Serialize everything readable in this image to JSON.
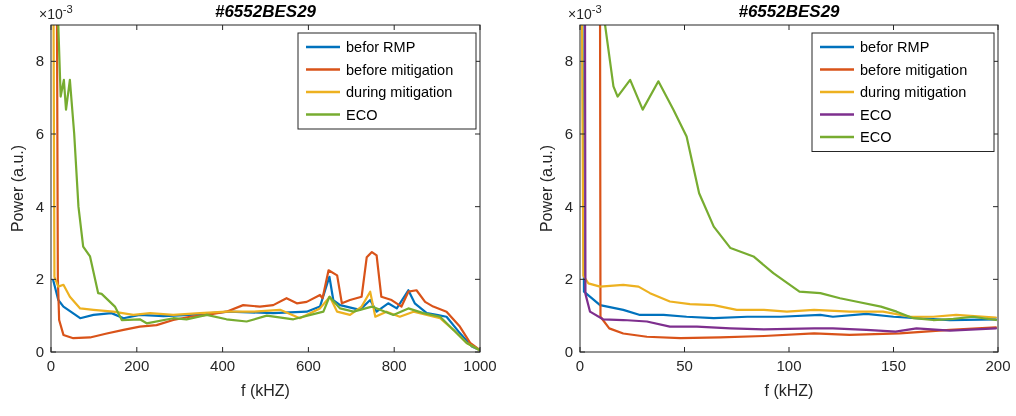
{
  "chart_data": [
    {
      "type": "line",
      "title": "#6552BES29",
      "xlabel": "f (kHZ)",
      "ylabel": "Power (a.u.)",
      "annotations": [
        "×10$^{-3}$"
      ],
      "xlim": [
        0,
        1000
      ],
      "xticks": [
        0,
        200,
        400,
        600,
        800,
        1000
      ],
      "ylim": [
        0,
        9
      ],
      "yticks": [
        0,
        2,
        4,
        6,
        8
      ],
      "legend": "top right",
      "grid": false,
      "marker": "none",
      "line_style": "solid",
      "series": [
        {
          "name": "befor RMP",
          "color": "#0072bd",
          "x": [
            5,
            17,
            29,
            68,
            99,
            141,
            169,
            207,
            262,
            324,
            415,
            518,
            596,
            627,
            639,
            649,
            658,
            674,
            720,
            744,
            759,
            786,
            806,
            833,
            848,
            876,
            899,
            922,
            953,
            981,
            1000
          ],
          "values": [
            1.98,
            1.43,
            1.25,
            0.93,
            1.02,
            1.07,
            0.93,
            1.02,
            0.99,
            1.02,
            1.11,
            1.07,
            1.11,
            1.25,
            1.7,
            2.07,
            1.43,
            1.29,
            1.16,
            1.43,
            1.11,
            1.34,
            1.2,
            1.7,
            1.34,
            1.07,
            1.02,
            0.97,
            0.52,
            0.15,
            0.05
          ]
        },
        {
          "name": "before mitigation",
          "color": "#d95319",
          "x": [
            14,
            16,
            19,
            29,
            52,
            91,
            130,
            169,
            207,
            246,
            285,
            324,
            363,
            409,
            448,
            487,
            518,
            549,
            573,
            596,
            627,
            633,
            647,
            667,
            678,
            697,
            724,
            736,
            748,
            759,
            770,
            794,
            817,
            833,
            852,
            872,
            891,
            922,
            953,
            977,
            1000
          ],
          "values": [
            9,
            2.0,
            0.88,
            0.47,
            0.38,
            0.4,
            0.51,
            0.61,
            0.7,
            0.74,
            0.88,
            0.97,
            1.02,
            1.11,
            1.29,
            1.25,
            1.29,
            1.48,
            1.34,
            1.38,
            1.57,
            1.48,
            2.25,
            2.11,
            1.34,
            1.43,
            1.52,
            2.61,
            2.75,
            2.66,
            1.52,
            1.43,
            1.25,
            1.66,
            1.7,
            1.38,
            1.25,
            1.11,
            0.7,
            0.25,
            0.05
          ]
        },
        {
          "name": "during mitigation",
          "color": "#edb120",
          "x": [
            6,
            8,
            17,
            29,
            44,
            68,
            99,
            145,
            192,
            231,
            285,
            347,
            409,
            472,
            534,
            580,
            627,
            650,
            667,
            697,
            724,
            744,
            756,
            782,
            813,
            845,
            876,
            907,
            938,
            969,
            1000
          ],
          "values": [
            9,
            2.07,
            1.8,
            1.85,
            1.52,
            1.2,
            1.16,
            1.11,
            1.02,
            1.07,
            1.02,
            1.07,
            1.11,
            1.11,
            1.16,
            0.93,
            1.2,
            1.52,
            1.11,
            1.02,
            1.25,
            1.66,
            0.97,
            1.11,
            0.97,
            1.11,
            1.02,
            0.93,
            0.61,
            0.25,
            0.05
          ]
        },
        {
          "name": "ECO",
          "color": "#77ac30",
          "x": [
            17,
            22.5,
            30,
            35,
            44,
            54,
            64,
            75,
            91,
            110,
            118,
            149,
            165,
            207,
            223,
            285,
            316,
            363,
            409,
            456,
            503,
            565,
            635,
            649,
            674,
            705,
            748,
            798,
            833,
            868,
            907,
            930,
            969,
            1000
          ],
          "values": [
            9,
            7.03,
            7.49,
            6.67,
            7.49,
            6.02,
            4.0,
            2.9,
            2.63,
            1.62,
            1.6,
            1.25,
            0.88,
            0.9,
            0.79,
            0.93,
            0.9,
            1.02,
            0.9,
            0.84,
            1.0,
            0.9,
            1.11,
            1.52,
            1.2,
            1.11,
            1.25,
            1.02,
            1.2,
            1.07,
            0.97,
            0.7,
            0.25,
            0.05
          ]
        }
      ]
    },
    {
      "type": "line",
      "title": "#6552BES29",
      "xlabel": "f (kHZ)",
      "ylabel": "Power (a.u.)",
      "annotations": [
        "×10$^{-3}$"
      ],
      "xlim": [
        0,
        200
      ],
      "xticks": [
        0,
        50,
        100,
        150,
        200
      ],
      "ylim": [
        0,
        9
      ],
      "yticks": [
        0,
        2,
        4,
        6,
        8
      ],
      "legend": "top right",
      "grid": false,
      "marker": "none",
      "line_style": "solid",
      "series": [
        {
          "name": "befor RMP",
          "color": "#0072bd",
          "x": [
            1.2,
            1.9,
            9.6,
            20.7,
            28.7,
            40,
            51,
            64,
            80,
            96,
            115,
            121,
            137,
            150,
            161,
            177,
            199
          ],
          "values": [
            9,
            1.66,
            1.29,
            1.16,
            1.02,
            1.02,
            0.97,
            0.93,
            0.97,
            0.97,
            1.02,
            0.97,
            1.05,
            0.97,
            0.93,
            0.88,
            0.9
          ]
        },
        {
          "name": "before mitigation",
          "color": "#d95319",
          "x": [
            9.6,
            9.8,
            14,
            20.7,
            32,
            48,
            67,
            88,
            112,
            129,
            153,
            177,
            199
          ],
          "values": [
            9,
            0.97,
            0.65,
            0.51,
            0.42,
            0.38,
            0.4,
            0.44,
            0.51,
            0.47,
            0.51,
            0.61,
            0.68
          ]
        },
        {
          "name": "during mitigation",
          "color": "#edb120",
          "x": [
            1,
            1.6,
            4,
            9.6,
            20.7,
            28,
            33.5,
            43,
            52.6,
            64,
            75,
            88,
            99,
            112,
            129,
            145,
            158,
            169,
            180,
            199
          ],
          "values": [
            9,
            2.1,
            1.89,
            1.8,
            1.85,
            1.8,
            1.62,
            1.39,
            1.32,
            1.29,
            1.16,
            1.16,
            1.11,
            1.16,
            1.11,
            1.11,
            0.97,
            0.97,
            1.02,
            0.95
          ]
        },
        {
          "name": "ECO",
          "color": "#7e2f8e",
          "x": [
            2.4,
            2.6,
            4.8,
            11,
            20.7,
            32,
            43,
            56,
            72,
            88,
            112,
            121,
            137,
            151,
            161,
            177,
            199
          ],
          "values": [
            9,
            1.6,
            1.11,
            0.9,
            0.88,
            0.84,
            0.7,
            0.7,
            0.65,
            0.62,
            0.65,
            0.65,
            0.61,
            0.56,
            0.65,
            0.59,
            0.65
          ]
        },
        {
          "name": "ECO",
          "color": "#77ac30",
          "x": [
            12,
            16,
            18,
            24,
            30,
            37.5,
            44.7,
            51,
            57,
            64,
            72,
            83,
            92.5,
            105,
            115,
            124.4,
            132,
            144,
            151.5,
            159.5,
            169,
            178.6,
            188,
            199
          ],
          "values": [
            9,
            7.31,
            7.03,
            7.49,
            6.67,
            7.45,
            6.67,
            5.93,
            4.37,
            3.45,
            2.86,
            2.63,
            2.17,
            1.66,
            1.62,
            1.48,
            1.39,
            1.25,
            1.11,
            0.93,
            0.88,
            0.91,
            0.97,
            0.88
          ]
        }
      ]
    }
  ]
}
